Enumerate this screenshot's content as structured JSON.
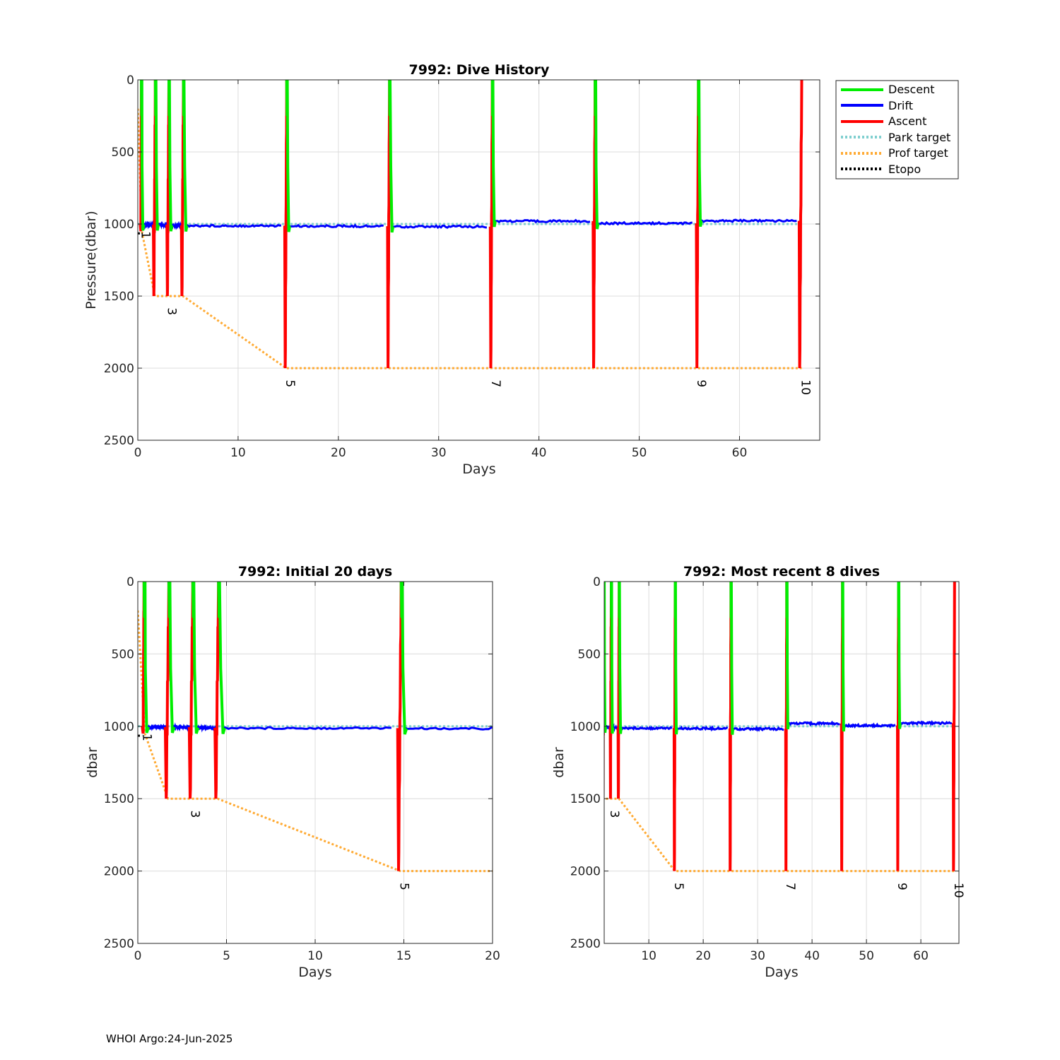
{
  "footer": "WHOI Argo:24-Jun-2025",
  "colors": {
    "descent": "#00ee00",
    "drift": "#0000ff",
    "ascent": "#ff0000",
    "park_target": "#7fcfcf",
    "prof_target": "#ffaa33",
    "etopo": "#000000"
  },
  "chart_data": [
    {
      "id": "main",
      "type": "line",
      "title": "7992: Dive History",
      "xlabel": "Days",
      "ylabel": "Pressure(dbar)",
      "xlim": [
        0,
        68
      ],
      "ylim": [
        0,
        2500
      ],
      "y_reversed": true,
      "xticks": [
        0,
        10,
        20,
        30,
        40,
        50,
        60
      ],
      "yticks": [
        0,
        500,
        1000,
        1500,
        2000,
        2500
      ],
      "grid": true,
      "legend": {
        "placement": "outside-top-right",
        "entries": [
          "Descent",
          "Drift",
          "Ascent",
          "Park target",
          "Prof target",
          "Etopo"
        ]
      },
      "profile_labels": [
        {
          "x": 0.4,
          "y": 1050,
          "text": "1"
        },
        {
          "x": 3.0,
          "y": 1580,
          "text": "3"
        },
        {
          "x": 14.8,
          "y": 2080,
          "text": "5"
        },
        {
          "x": 35.3,
          "y": 2080,
          "text": "7"
        },
        {
          "x": 55.8,
          "y": 2080,
          "text": "9"
        },
        {
          "x": 66.2,
          "y": 2080,
          "text": "10"
        }
      ]
    },
    {
      "id": "initial",
      "type": "line",
      "title": "7992: Initial 20 days",
      "xlabel": "Days",
      "ylabel": "dbar",
      "xlim": [
        0,
        20
      ],
      "ylim": [
        0,
        2500
      ],
      "y_reversed": true,
      "xticks": [
        0,
        5,
        10,
        15,
        20
      ],
      "yticks": [
        0,
        500,
        1000,
        1500,
        2000,
        2500
      ],
      "grid": true,
      "profile_labels": [
        {
          "x": 0.3,
          "y": 1050,
          "text": "1"
        },
        {
          "x": 3.0,
          "y": 1580,
          "text": "3"
        },
        {
          "x": 14.8,
          "y": 2080,
          "text": "5"
        }
      ]
    },
    {
      "id": "recent",
      "type": "line",
      "title": "7992: Most recent 8 dives",
      "xlabel": "Days",
      "ylabel": "dbar",
      "xlim": [
        1.8,
        67
      ],
      "ylim": [
        0,
        2500
      ],
      "y_reversed": true,
      "xticks": [
        10,
        20,
        30,
        40,
        50,
        60
      ],
      "yticks": [
        0,
        500,
        1000,
        1500,
        2000,
        2500
      ],
      "grid": true,
      "profile_labels": [
        {
          "x": 3.0,
          "y": 1580,
          "text": "3"
        },
        {
          "x": 14.8,
          "y": 2080,
          "text": "5"
        },
        {
          "x": 35.3,
          "y": 2080,
          "text": "7"
        },
        {
          "x": 55.8,
          "y": 2080,
          "text": "9"
        },
        {
          "x": 66.2,
          "y": 2080,
          "text": "10"
        }
      ]
    }
  ],
  "series_data": {
    "cycles": [
      {
        "n": 1,
        "ascent_start": 0.3,
        "ascent_end": 0.35,
        "deep": 1050,
        "descent_start": 0.35,
        "descent_end": 0.5
      },
      {
        "n": 2,
        "ascent_start": 1.6,
        "ascent_end": 1.75,
        "deep": 1500,
        "descent_start": 1.75,
        "descent_end": 1.95
      },
      {
        "n": 3,
        "ascent_start": 2.95,
        "ascent_end": 3.1,
        "deep": 1500,
        "descent_start": 3.1,
        "descent_end": 3.3
      },
      {
        "n": 4,
        "ascent_start": 4.4,
        "ascent_end": 4.55,
        "deep": 1500,
        "descent_start": 4.55,
        "descent_end": 4.8
      },
      {
        "n": 5,
        "ascent_start": 14.7,
        "ascent_end": 14.85,
        "deep": 2000,
        "descent_start": 14.85,
        "descent_end": 15.05
      },
      {
        "n": 6,
        "ascent_start": 24.95,
        "ascent_end": 25.1,
        "deep": 2000,
        "descent_start": 25.1,
        "descent_end": 25.35
      },
      {
        "n": 7,
        "ascent_start": 35.2,
        "ascent_end": 35.35,
        "deep": 2000,
        "descent_start": 35.35,
        "descent_end": 35.55
      },
      {
        "n": 8,
        "ascent_start": 45.45,
        "ascent_end": 45.6,
        "deep": 2000,
        "descent_start": 45.6,
        "descent_end": 45.8
      },
      {
        "n": 9,
        "ascent_start": 55.75,
        "ascent_end": 55.9,
        "deep": 2000,
        "descent_start": 55.9,
        "descent_end": 56.1
      },
      {
        "n": 10,
        "ascent_start": 66.0,
        "ascent_end": 66.2,
        "deep": 2000
      }
    ],
    "drift_segments": [
      {
        "x": [
          0.5,
          1.6
        ],
        "y": 1005
      },
      {
        "x": [
          1.95,
          2.95
        ],
        "y": 1005
      },
      {
        "x": [
          3.3,
          4.4
        ],
        "y": 1010
      },
      {
        "x": [
          4.8,
          14.3
        ],
        "y": 1012
      },
      {
        "x": [
          15.05,
          24.5
        ],
        "y": 1015
      },
      {
        "x": [
          25.35,
          34.8
        ],
        "y": 1018
      },
      {
        "x": [
          35.55,
          45.1
        ],
        "y": 980
      },
      {
        "x": [
          45.8,
          55.3
        ],
        "y": 995
      },
      {
        "x": [
          56.1,
          65.7
        ],
        "y": 978
      }
    ],
    "park_target": {
      "x": [
        0,
        66.2
      ],
      "y": 1000
    },
    "prof_target": {
      "x": [
        0,
        0.4,
        1.7,
        4.5,
        14.8,
        66.2
      ],
      "y": [
        200,
        1050,
        1500,
        1500,
        2000,
        2000
      ]
    },
    "etopo": {
      "x": [
        0,
        0.25
      ],
      "y": [
        1065,
        1065
      ]
    }
  }
}
